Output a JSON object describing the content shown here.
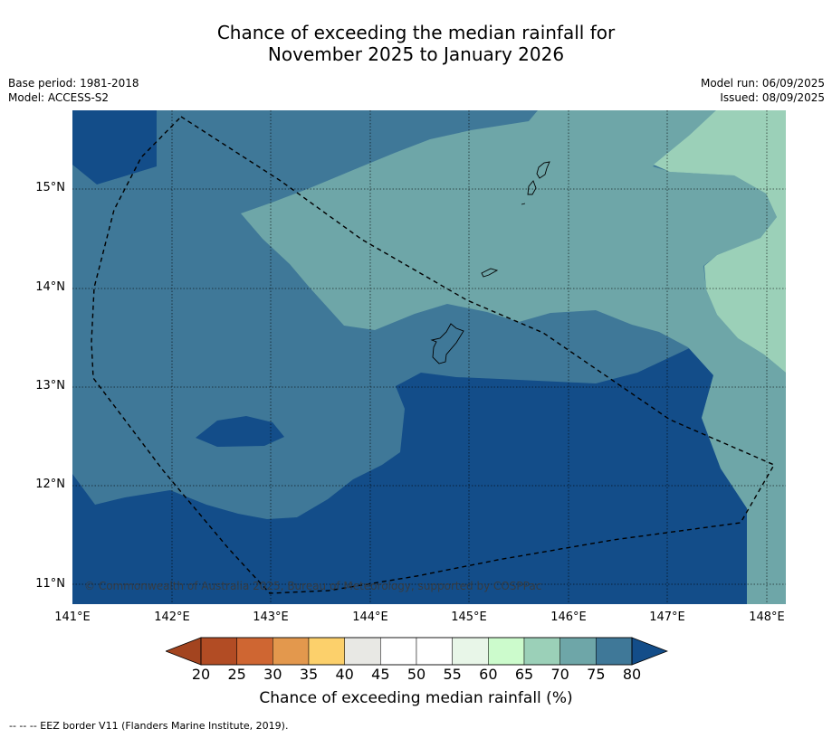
{
  "title": {
    "line1": "Chance of exceeding the median rainfall for",
    "line2": "November 2025 to January 2026"
  },
  "meta_left": {
    "base_period": "Base period: 1981-2018",
    "model": "Model: ACCESS-S2"
  },
  "meta_right": {
    "model_run": "Model run: 06/09/2025",
    "issued": "Issued: 08/09/2025"
  },
  "map": {
    "lat_labels": [
      "15°N",
      "14°N",
      "13°N",
      "12°N",
      "11°N"
    ],
    "lon_labels": [
      "141°E",
      "142°E",
      "143°E",
      "144°E",
      "145°E",
      "146°E",
      "147°E",
      "148°E"
    ],
    "copyright": "© Commonwealth of Australia 2025, Bureau of Meteorology, supported by COSPPac",
    "colors": {
      "c80plus": "#134d89",
      "c75_80": "#3f7898",
      "c70_75": "#6ea6a8",
      "c65_70": "#9bd0b8",
      "grid": "#000000",
      "eez": "#000000"
    }
  },
  "colorbar": {
    "ticks": [
      "20",
      "25",
      "30",
      "35",
      "40",
      "45",
      "50",
      "55",
      "60",
      "65",
      "70",
      "75",
      "80"
    ],
    "under_color": "#a3441f",
    "over_color": "#134d89",
    "bins": [
      "#b24c24",
      "#cf6632",
      "#e3984d",
      "#fcd06b",
      "#e8e8e4",
      "#ffffff",
      "#ffffff",
      "#e8f6e8",
      "#ccfbcc",
      "#9bd0b8",
      "#6ea6a8",
      "#3f7898"
    ],
    "label": "Chance of exceeding median rainfall (%)"
  },
  "footnote": "--  --  -- EEZ border V11 (Flanders Marine Institute, 2019)."
}
